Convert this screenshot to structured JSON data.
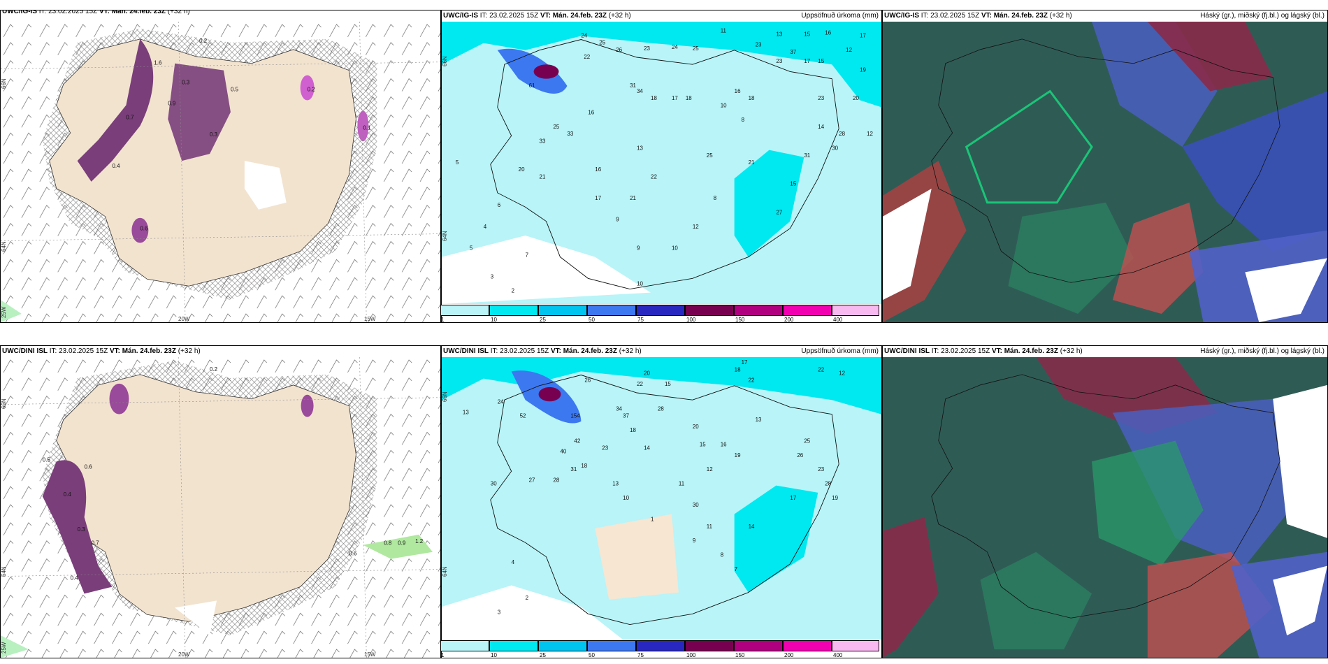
{
  "top": {
    "left": {
      "title_model": "UWC/IG-IS",
      "title_rest": " IT: 23.02.2025 15Z ",
      "vt": "VT: Mán. 24.feb. 23Z",
      "tail": " (+32 h)"
    },
    "mid": {
      "title_model": "UWC/IG-IS",
      "title_rest": " IT: 23.02.2025 15Z ",
      "vt": "VT: Mán. 24.feb. 23Z",
      "tail": " (+32 h)",
      "right": "Uppsöfnuð úrkoma (mm)"
    },
    "right": {
      "title_model": "UWC/IG-IS",
      "title_rest": " IT: 23.02.2025 15Z ",
      "vt": "VT: Mán. 24.feb. 23Z",
      "tail": " (+32 h)",
      "right": "Háský (gr.), miðský (fj.bl.) og lágský (bl.)"
    }
  },
  "bottom": {
    "left": {
      "title_model": "UWC/DINI ISL",
      "title_rest": " IT: 23.02.2025 15Z ",
      "vt": "VT: Mán. 24.feb. 23Z",
      "tail": " (+32 h)"
    },
    "mid": {
      "title_model": "UWC/DINI ISL",
      "title_rest": " IT: 23.02.2025 15Z ",
      "vt": "VT: Mán. 24.feb. 23Z",
      "tail": " (+32 h)",
      "right": "Uppsöfnuð úrkoma (mm)"
    },
    "right": {
      "title_model": "UWC/DINI ISL",
      "title_rest": " IT: 23.02.2025 15Z ",
      "vt": "VT: Mán. 24.feb. 23Z",
      "tail": " (+32 h)",
      "right": "Háský (gr.), miðský (fj.bl.) og lágský (bl.)"
    }
  },
  "axes": {
    "lat66": "66N",
    "lat64": "64N",
    "lon20": "20W",
    "lon15": "15W",
    "lon25": "25W"
  },
  "colorbar": {
    "ticks": [
      "1",
      "10",
      "25",
      "50",
      "75",
      "100",
      "150",
      "200",
      "400"
    ],
    "colors": [
      "#b8f4f8",
      "#00e8f0",
      "#00c4f0",
      "#3c78f0",
      "#2828c0",
      "#780050",
      "#b00080",
      "#f000b0",
      "#f8b8f0"
    ]
  },
  "precip_top": [
    "24",
    "25",
    "26",
    "23",
    "24",
    "25",
    "22",
    "11",
    "23",
    "13",
    "15",
    "16",
    "17",
    "61",
    "23",
    "37",
    "17",
    "15",
    "12",
    "31",
    "34",
    "18",
    "17",
    "18",
    "10",
    "8",
    "16",
    "25",
    "33",
    "33",
    "20",
    "21",
    "16",
    "13",
    "22",
    "21",
    "17",
    "25",
    "21",
    "8",
    "12",
    "10",
    "9",
    "9",
    "6",
    "4",
    "7",
    "5",
    "3",
    "2",
    "5",
    "10",
    "20",
    "12",
    "14",
    "15",
    "23",
    "28",
    "30",
    "31",
    "27",
    "16",
    "18",
    "19"
  ],
  "precip_bottom": [
    "26",
    "20",
    "22",
    "15",
    "18",
    "17",
    "22",
    "12",
    "13",
    "24",
    "52",
    "154",
    "34",
    "37",
    "18",
    "28",
    "20",
    "13",
    "16",
    "15",
    "19",
    "42",
    "40",
    "23",
    "14",
    "30",
    "27",
    "28",
    "31",
    "18",
    "13",
    "10",
    "11",
    "12",
    "14",
    "11",
    "9",
    "8",
    "7",
    "4",
    "2",
    "1",
    "3",
    "30",
    "17",
    "22",
    "25",
    "26",
    "23",
    "28",
    "19"
  ],
  "wind_vals_top": [
    "0.2",
    "1.6",
    "0.3",
    "0.5",
    "0.7",
    "0.4",
    "0.3",
    "0.2",
    "0.1",
    "0.9",
    "0.6"
  ],
  "wind_vals_bottom": [
    "0.2",
    "0.5",
    "0.4",
    "0.3",
    "0.6",
    "0.9",
    "0.8",
    "1.2",
    "0.6",
    "0.7",
    "0.4"
  ]
}
